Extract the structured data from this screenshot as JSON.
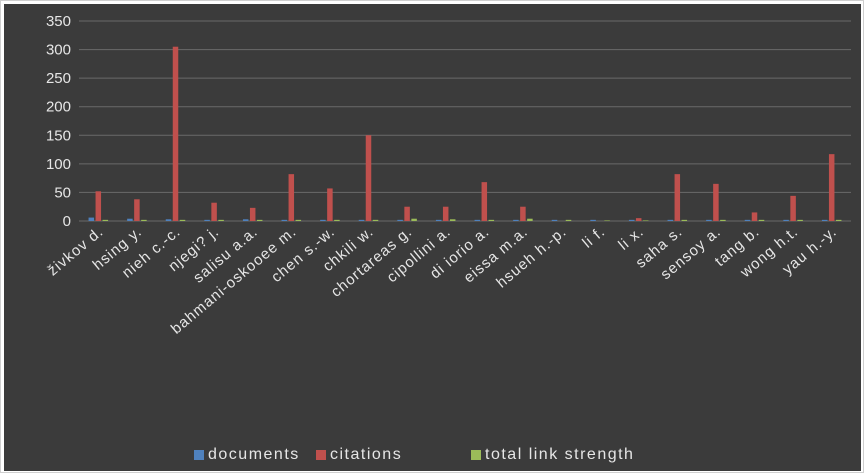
{
  "chart_data": {
    "type": "bar",
    "title": "",
    "xlabel": "",
    "ylabel": "",
    "ylim": [
      0,
      350
    ],
    "yticks": [
      0,
      50,
      100,
      150,
      200,
      250,
      300,
      350
    ],
    "grid": true,
    "legend_position": "bottom",
    "categories": [
      "živkov d.",
      "hsing y.",
      "nieh c.-c.",
      "njegi? j.",
      "salisu a.a.",
      "bahmani-oskooee m.",
      "chen s.-w.",
      "chkili w.",
      "chortareas g.",
      "cipollini a.",
      "di iorio a.",
      "eissa m.a.",
      "hsueh h.-p.",
      "li f.",
      "li x.",
      "saha s.",
      "sensoy a.",
      "tang b.",
      "wong h.t.",
      "yau h.-y."
    ],
    "series": [
      {
        "name": "documents",
        "color": "#4f81bd",
        "values": [
          6,
          4,
          3,
          2,
          3,
          2,
          2,
          2,
          2,
          2,
          2,
          2,
          2,
          2,
          2,
          2,
          2,
          2,
          2,
          2
        ]
      },
      {
        "name": "citations",
        "color": "#c0504d",
        "values": [
          52,
          38,
          305,
          32,
          23,
          82,
          57,
          150,
          25,
          25,
          68,
          25,
          0,
          0,
          5,
          82,
          65,
          15,
          44,
          117
        ]
      },
      {
        "name": "total link strength",
        "color": "#9bbb59",
        "values": [
          2,
          2,
          2,
          2,
          2,
          2,
          2,
          2,
          4,
          3,
          2,
          4,
          2,
          1,
          1,
          2,
          2,
          2,
          2,
          2
        ]
      }
    ]
  }
}
